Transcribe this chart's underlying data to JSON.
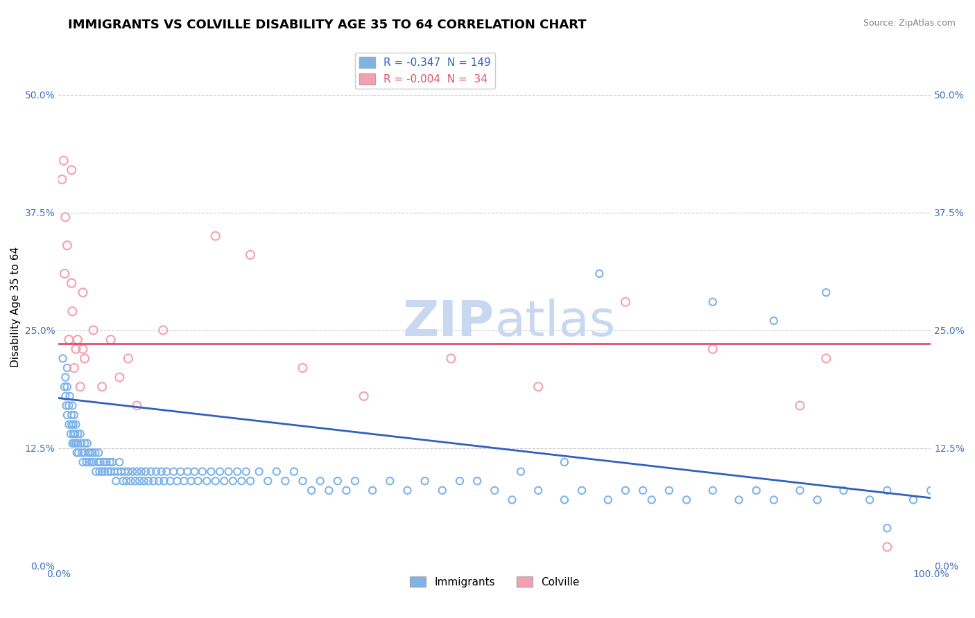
{
  "title": "IMMIGRANTS VS COLVILLE DISABILITY AGE 35 TO 64 CORRELATION CHART",
  "source_text": "Source: ZipAtlas.com",
  "ylabel": "Disability Age 35 to 64",
  "xlim": [
    0.0,
    1.0
  ],
  "ylim": [
    0.0,
    0.55
  ],
  "yticks": [
    0.0,
    0.125,
    0.25,
    0.375,
    0.5
  ],
  "ytick_labels": [
    "0.0%",
    "12.5%",
    "25.0%",
    "37.5%",
    "50.0%"
  ],
  "xticks": [
    0.0,
    0.25,
    0.5,
    0.75,
    1.0
  ],
  "xtick_labels": [
    "0.0%",
    "",
    "",
    "",
    "100.0%"
  ],
  "immigrants_R": -0.347,
  "immigrants_N": 149,
  "colville_R": -0.004,
  "colville_N": 34,
  "blue_color": "#7EB3E8",
  "pink_color": "#F4A0B0",
  "blue_line_color": "#3060C0",
  "pink_line_color": "#E05070",
  "watermark_color": "#C8D8F0",
  "background_color": "#FFFFFF",
  "grid_color": "#CCCCCC",
  "title_fontsize": 13,
  "axis_label_fontsize": 11,
  "tick_label_color": "#4070C0",
  "immigrants_x": [
    0.005,
    0.007,
    0.008,
    0.008,
    0.009,
    0.01,
    0.01,
    0.01,
    0.012,
    0.012,
    0.013,
    0.014,
    0.015,
    0.015,
    0.016,
    0.016,
    0.017,
    0.017,
    0.018,
    0.018,
    0.019,
    0.02,
    0.02,
    0.021,
    0.022,
    0.022,
    0.023,
    0.025,
    0.026,
    0.027,
    0.028,
    0.03,
    0.03,
    0.032,
    0.033,
    0.034,
    0.035,
    0.036,
    0.038,
    0.039,
    0.04,
    0.042,
    0.043,
    0.045,
    0.046,
    0.047,
    0.048,
    0.05,
    0.052,
    0.053,
    0.055,
    0.057,
    0.059,
    0.06,
    0.062,
    0.064,
    0.066,
    0.068,
    0.07,
    0.072,
    0.074,
    0.076,
    0.078,
    0.08,
    0.083,
    0.085,
    0.088,
    0.09,
    0.093,
    0.095,
    0.098,
    0.1,
    0.103,
    0.106,
    0.109,
    0.112,
    0.115,
    0.118,
    0.121,
    0.124,
    0.128,
    0.132,
    0.136,
    0.14,
    0.144,
    0.148,
    0.152,
    0.156,
    0.16,
    0.165,
    0.17,
    0.175,
    0.18,
    0.185,
    0.19,
    0.195,
    0.2,
    0.205,
    0.21,
    0.215,
    0.22,
    0.23,
    0.24,
    0.25,
    0.26,
    0.27,
    0.28,
    0.29,
    0.3,
    0.31,
    0.32,
    0.33,
    0.34,
    0.36,
    0.38,
    0.4,
    0.42,
    0.44,
    0.46,
    0.5,
    0.52,
    0.55,
    0.58,
    0.6,
    0.63,
    0.65,
    0.68,
    0.7,
    0.72,
    0.75,
    0.78,
    0.8,
    0.82,
    0.85,
    0.87,
    0.9,
    0.93,
    0.95,
    0.98,
    1.0,
    0.62,
    0.75,
    0.82,
    0.88,
    0.95,
    0.58,
    0.48,
    0.53,
    0.67
  ],
  "immigrants_y": [
    0.22,
    0.19,
    0.18,
    0.2,
    0.17,
    0.16,
    0.19,
    0.21,
    0.15,
    0.17,
    0.18,
    0.14,
    0.16,
    0.15,
    0.13,
    0.17,
    0.14,
    0.15,
    0.13,
    0.16,
    0.14,
    0.13,
    0.15,
    0.12,
    0.14,
    0.13,
    0.12,
    0.14,
    0.13,
    0.12,
    0.11,
    0.13,
    0.12,
    0.11,
    0.13,
    0.12,
    0.11,
    0.12,
    0.11,
    0.12,
    0.11,
    0.12,
    0.1,
    0.11,
    0.12,
    0.1,
    0.11,
    0.1,
    0.11,
    0.1,
    0.11,
    0.1,
    0.11,
    0.1,
    0.11,
    0.1,
    0.09,
    0.1,
    0.11,
    0.1,
    0.09,
    0.1,
    0.09,
    0.1,
    0.09,
    0.1,
    0.09,
    0.1,
    0.09,
    0.1,
    0.09,
    0.1,
    0.09,
    0.1,
    0.09,
    0.1,
    0.09,
    0.1,
    0.09,
    0.1,
    0.09,
    0.1,
    0.09,
    0.1,
    0.09,
    0.1,
    0.09,
    0.1,
    0.09,
    0.1,
    0.09,
    0.1,
    0.09,
    0.1,
    0.09,
    0.1,
    0.09,
    0.1,
    0.09,
    0.1,
    0.09,
    0.1,
    0.09,
    0.1,
    0.09,
    0.1,
    0.09,
    0.08,
    0.09,
    0.08,
    0.09,
    0.08,
    0.09,
    0.08,
    0.09,
    0.08,
    0.09,
    0.08,
    0.09,
    0.08,
    0.07,
    0.08,
    0.07,
    0.08,
    0.07,
    0.08,
    0.07,
    0.08,
    0.07,
    0.08,
    0.07,
    0.08,
    0.07,
    0.08,
    0.07,
    0.08,
    0.07,
    0.08,
    0.07,
    0.08,
    0.31,
    0.28,
    0.26,
    0.29,
    0.04,
    0.11,
    0.09,
    0.1,
    0.08
  ],
  "colville_x": [
    0.004,
    0.006,
    0.007,
    0.008,
    0.01,
    0.012,
    0.015,
    0.015,
    0.016,
    0.018,
    0.02,
    0.022,
    0.025,
    0.028,
    0.028,
    0.03,
    0.04,
    0.05,
    0.06,
    0.07,
    0.08,
    0.09,
    0.12,
    0.18,
    0.22,
    0.28,
    0.35,
    0.45,
    0.55,
    0.65,
    0.75,
    0.85,
    0.88,
    0.95
  ],
  "colville_y": [
    0.41,
    0.43,
    0.31,
    0.37,
    0.34,
    0.24,
    0.3,
    0.42,
    0.27,
    0.21,
    0.23,
    0.24,
    0.19,
    0.29,
    0.23,
    0.22,
    0.25,
    0.19,
    0.24,
    0.2,
    0.22,
    0.17,
    0.25,
    0.35,
    0.33,
    0.21,
    0.18,
    0.22,
    0.19,
    0.28,
    0.23,
    0.17,
    0.22,
    0.02
  ],
  "marker_size_immigrants": 55,
  "marker_size_colville": 75,
  "regression_blue_x0": 0.0,
  "regression_blue_y0": 0.178,
  "regression_blue_x1": 1.0,
  "regression_blue_y1": 0.072,
  "regression_pink_y": 0.236
}
